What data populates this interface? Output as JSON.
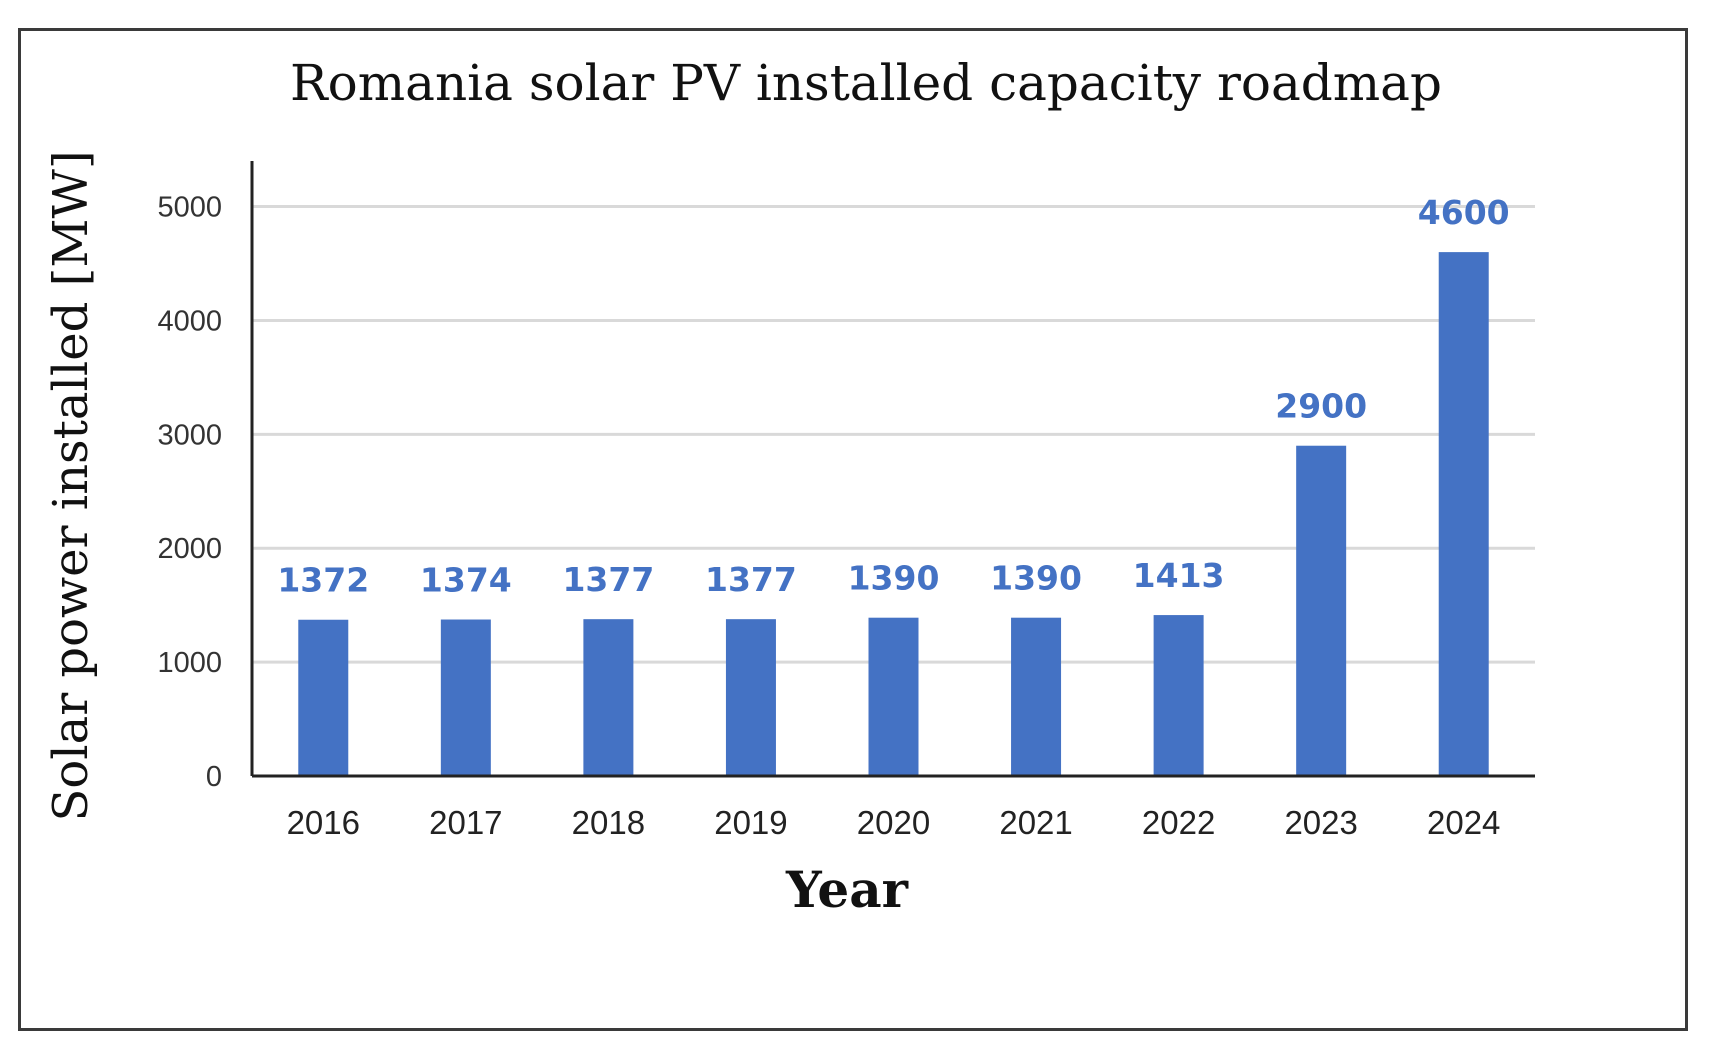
{
  "chart_data": {
    "type": "bar",
    "title": "Romania solar PV installed capacity roadmap",
    "xlabel": "Year",
    "ylabel": "Solar power installed [MW]",
    "categories": [
      "2016",
      "2017",
      "2018",
      "2019",
      "2020",
      "2021",
      "2022",
      "2023",
      "2024"
    ],
    "values": [
      1372,
      1374,
      1377,
      1377,
      1390,
      1390,
      1413,
      2900,
      4600
    ],
    "data_labels": [
      "1372",
      "1374",
      "1377",
      "1377",
      "1390",
      "1390",
      "1413",
      "2900",
      "4600"
    ],
    "ylim": [
      0,
      5400
    ],
    "yticks": [
      0,
      1000,
      2000,
      3000,
      4000,
      5000
    ],
    "ytick_labels": [
      "0",
      "1000",
      "2000",
      "3000",
      "4000",
      "5000"
    ],
    "grid": true,
    "legend": "none",
    "bar_color": "#4472c4",
    "label_color": "#4472c4",
    "gridline_color": "#d9d9d9"
  }
}
